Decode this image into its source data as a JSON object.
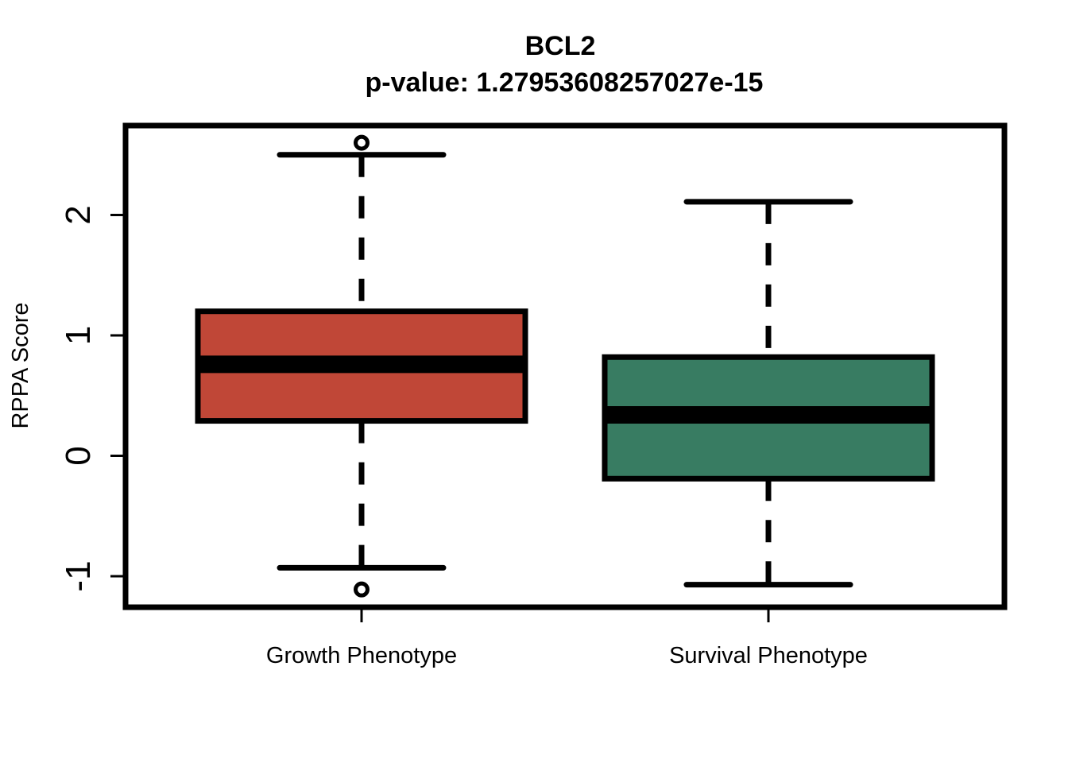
{
  "chart_data": {
    "type": "boxplot",
    "title": "BCL2",
    "subtitle": "p-value: 1.27953608257027e-15",
    "xlabel": "",
    "ylabel": "RPPA Score",
    "yticks": [
      -1,
      0,
      1,
      2
    ],
    "ylim": [
      -1.25,
      2.75
    ],
    "grid": false,
    "categories": [
      "Growth Phenotype",
      "Survival Phenotype"
    ],
    "boxes": [
      {
        "category": "Growth Phenotype",
        "whisker_low": -0.93,
        "q1": 0.29,
        "median": 0.76,
        "q3": 1.2,
        "whisker_high": 2.5,
        "outliers": [
          2.6,
          -1.11
        ],
        "color": "#c04737"
      },
      {
        "category": "Survival Phenotype",
        "whisker_low": -1.07,
        "q1": -0.19,
        "median": 0.34,
        "q3": 0.82,
        "whisker_high": 2.11,
        "outliers": [],
        "color": "#387c62"
      }
    ]
  }
}
